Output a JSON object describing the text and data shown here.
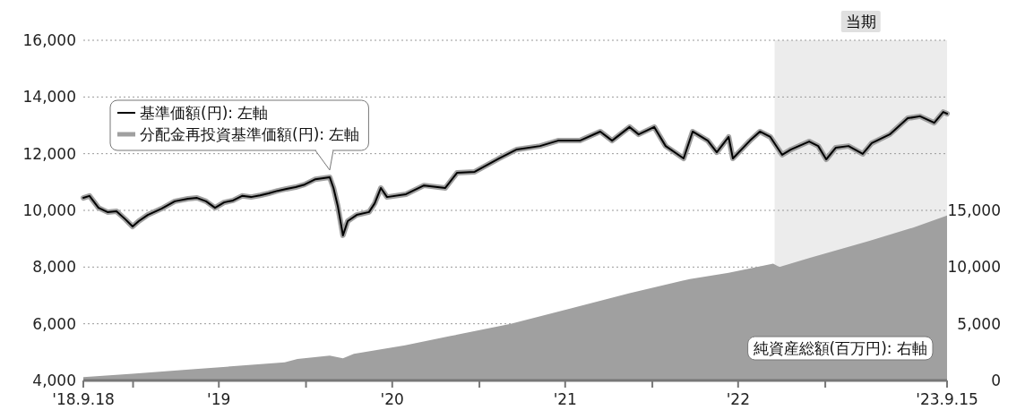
{
  "chart_data": {
    "type": "line",
    "x": [
      "2018-09-18",
      "2018-10-01",
      "2018-10-20",
      "2018-11-08",
      "2018-11-27",
      "2018-12-16",
      "2018-12-31",
      "2019-01-13",
      "2019-02-01",
      "2019-03-02",
      "2019-03-30",
      "2019-04-27",
      "2019-05-16",
      "2019-06-04",
      "2019-06-23",
      "2019-07-12",
      "2019-07-31",
      "2019-08-19",
      "2019-09-07",
      "2019-09-26",
      "2019-10-14",
      "2019-11-02",
      "2019-11-21",
      "2019-12-10",
      "2019-12-29",
      "2020-01-21",
      "2020-02-20",
      "2020-02-28",
      "2020-03-08",
      "2020-03-19",
      "2020-03-29",
      "2020-04-17",
      "2020-05-13",
      "2020-05-25",
      "2020-06-07",
      "2020-06-20",
      "2020-07-30",
      "2020-09-06",
      "2020-10-21",
      "2020-11-15",
      "2020-12-22",
      "2021-02-11",
      "2021-03-21",
      "2021-05-09",
      "2021-06-16",
      "2021-08-01",
      "2021-09-13",
      "2021-10-08",
      "2021-11-14",
      "2021-12-03",
      "2022-01-05",
      "2022-01-29",
      "2022-03-08",
      "2022-03-27",
      "2022-04-28",
      "2022-05-17",
      "2022-06-11",
      "2022-06-20",
      "2022-07-26",
      "2022-08-16",
      "2022-09-07",
      "2022-10-02",
      "2022-10-21",
      "2022-11-28",
      "2022-12-17",
      "2023-01-03",
      "2023-01-23",
      "2023-02-19",
      "2023-03-21",
      "2023-04-09",
      "2023-05-17",
      "2023-06-24",
      "2023-07-20",
      "2023-08-19",
      "2023-09-07",
      "2023-09-15"
    ],
    "series": [
      {
        "name": "分配金再投資基準価額(円): 左軸",
        "color": "#a0a0a0",
        "values": [
          10440,
          10510,
          10090,
          9940,
          9970,
          9680,
          9430,
          9620,
          9840,
          10060,
          10320,
          10410,
          10440,
          10320,
          10090,
          10280,
          10350,
          10510,
          10470,
          10530,
          10600,
          10690,
          10760,
          10820,
          10910,
          11100,
          11170,
          10790,
          10160,
          9120,
          9620,
          9840,
          9940,
          10250,
          10790,
          10470,
          10570,
          10880,
          10790,
          11330,
          11360,
          11830,
          12150,
          12270,
          12460,
          12460,
          12780,
          12460,
          12940,
          12680,
          12940,
          12270,
          11830,
          12780,
          12460,
          12050,
          12590,
          11830,
          12460,
          12780,
          12590,
          11960,
          12150,
          12430,
          12270,
          11800,
          12210,
          12270,
          11990,
          12370,
          12680,
          13250,
          13320,
          13090,
          13470,
          13410
        ]
      },
      {
        "name": "基準価額(円): 左軸",
        "color": "#000000",
        "values": [
          10440,
          10510,
          10090,
          9940,
          9970,
          9680,
          9430,
          9620,
          9840,
          10060,
          10320,
          10410,
          10440,
          10320,
          10090,
          10280,
          10350,
          10510,
          10470,
          10530,
          10600,
          10690,
          10760,
          10820,
          10910,
          11100,
          11170,
          10790,
          10160,
          9120,
          9620,
          9840,
          9940,
          10250,
          10790,
          10470,
          10570,
          10880,
          10790,
          11330,
          11360,
          11830,
          12150,
          12270,
          12460,
          12460,
          12780,
          12460,
          12940,
          12680,
          12940,
          12270,
          11830,
          12780,
          12460,
          12050,
          12590,
          11830,
          12460,
          12780,
          12590,
          11960,
          12150,
          12430,
          12270,
          11800,
          12210,
          12270,
          11990,
          12370,
          12680,
          13250,
          13320,
          13090,
          13470,
          13410
        ]
      },
      {
        "name": "純資産総額(百万円): 右軸",
        "color": "#a0a0a0",
        "type": "area",
        "axis": "y2",
        "x": [
          "2018-09-18",
          "2018-12-31",
          "2019-05-12",
          "2019-11-17",
          "2019-12-14",
          "2020-02-20",
          "2020-03-19",
          "2020-04-11",
          "2020-07-28",
          "2020-10-30",
          "2021-03-08",
          "2021-07-13",
          "2021-11-14",
          "2022-03-21",
          "2022-06-11",
          "2022-09-13",
          "2022-09-26",
          "2022-11-28",
          "2023-04-03",
          "2023-07-07",
          "2023-09-15"
        ],
        "values": [
          300,
          600,
          1000,
          1600,
          1900,
          2200,
          1950,
          2350,
          3100,
          3900,
          5000,
          6350,
          7700,
          8950,
          9500,
          10300,
          10000,
          10800,
          12300,
          13500,
          14550
        ]
      }
    ],
    "xlim": [
      "2018-09-18",
      "2023-09-15"
    ],
    "xticks": [
      {
        "value": "2018-09-18",
        "label": "'18.9.18"
      },
      {
        "value": "2019-01-01",
        "label": null
      },
      {
        "value": "2019-07-01",
        "label": "'19"
      },
      {
        "value": "2020-01-01",
        "label": null
      },
      {
        "value": "2020-07-01",
        "label": "'20"
      },
      {
        "value": "2021-01-01",
        "label": null
      },
      {
        "value": "2021-07-01",
        "label": "'21"
      },
      {
        "value": "2022-01-01",
        "label": null
      },
      {
        "value": "2022-07-01",
        "label": "'22"
      },
      {
        "value": "2023-01-01",
        "label": null
      },
      {
        "value": "2023-09-15",
        "label": "'23.9.15"
      }
    ],
    "ylim": [
      4000,
      16000
    ],
    "yticks": [
      {
        "value": 4000,
        "label": "4,000"
      },
      {
        "value": 6000,
        "label": "6,000"
      },
      {
        "value": 8000,
        "label": "8,000"
      },
      {
        "value": 10000,
        "label": "10,000"
      },
      {
        "value": 12000,
        "label": "12,000"
      },
      {
        "value": 14000,
        "label": "14,000"
      },
      {
        "value": 16000,
        "label": "16,000"
      }
    ],
    "y2lim": [
      0,
      30000
    ],
    "y2ticks": [
      0,
      {
        "value": 5000,
        "label": "5,000"
      },
      {
        "value": 10000,
        "label": "10,000"
      },
      {
        "value": 15000,
        "label": "15,000"
      }
    ],
    "bands": [
      {
        "axis": "x",
        "from": "2022-09-16",
        "to": "2023-09-15",
        "label": "当期",
        "color": "#ececec"
      }
    ],
    "grid": "y",
    "legend": "top left"
  }
}
